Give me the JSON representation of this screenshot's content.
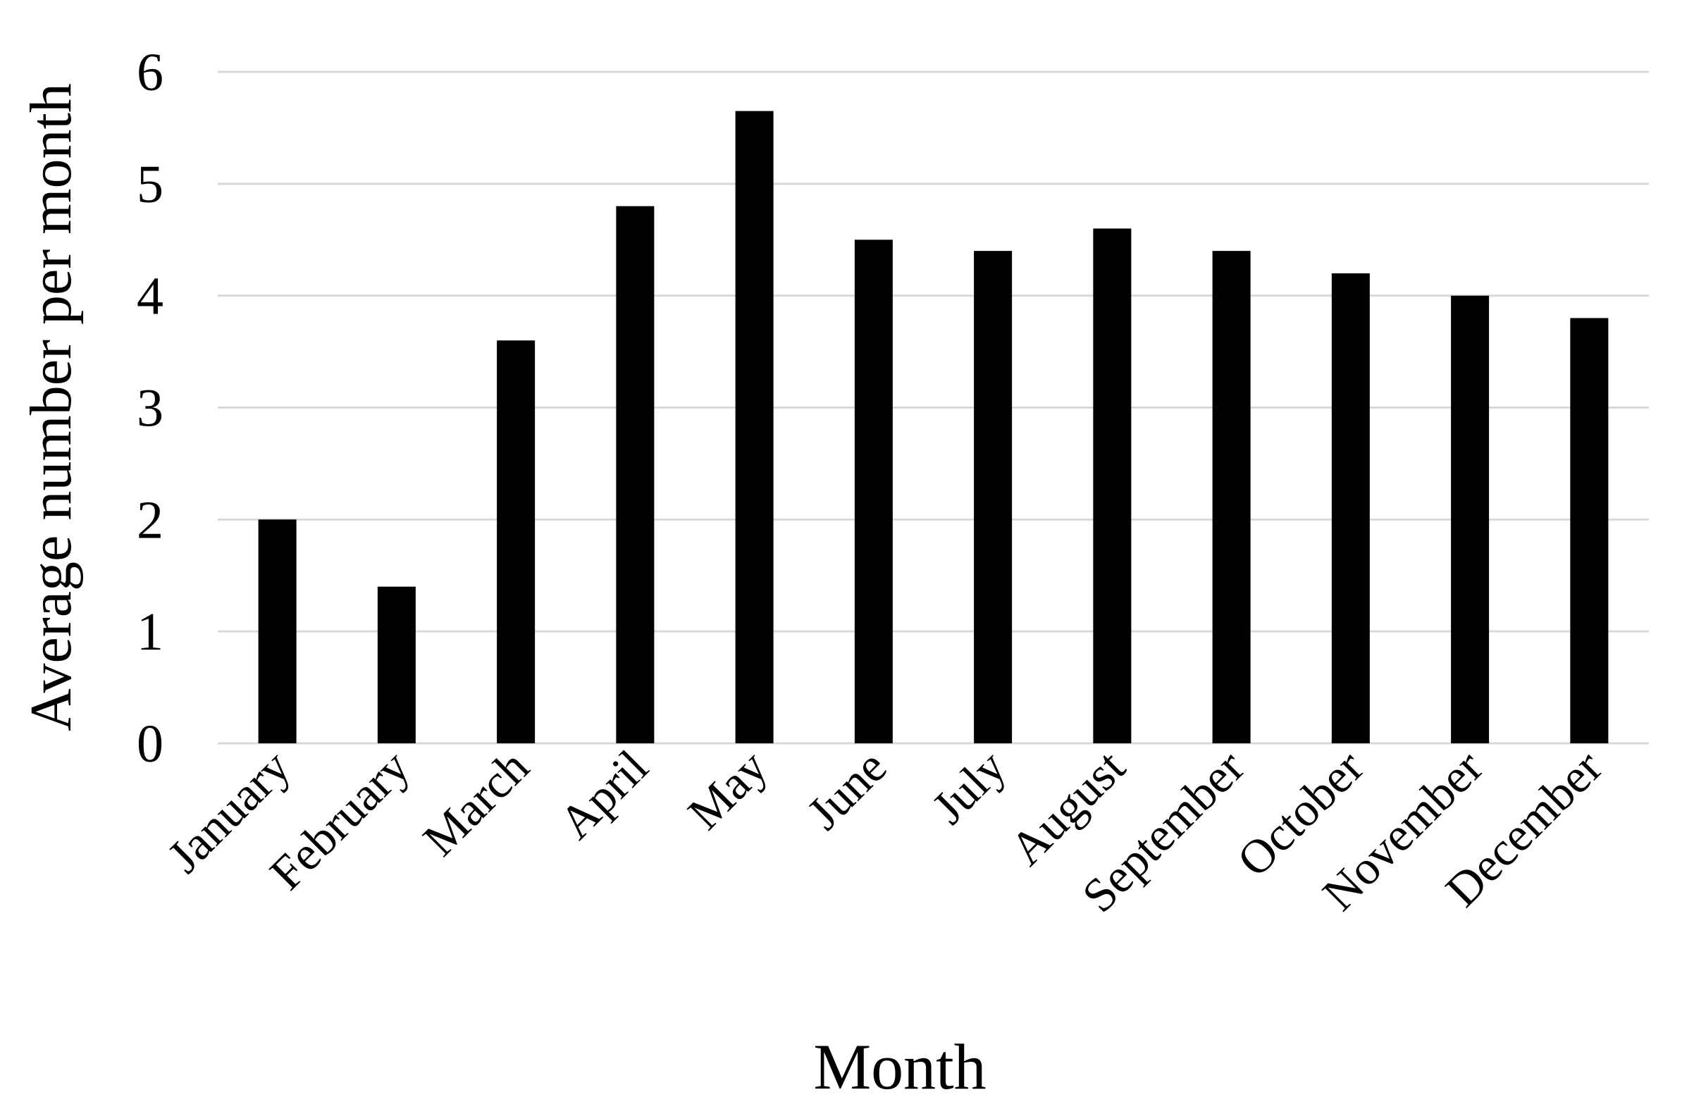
{
  "chart_data": {
    "type": "bar",
    "x_label": "Month",
    "y_label": "Average number per month",
    "categories": [
      "January",
      "February",
      "March",
      "April",
      "May",
      "June",
      "July",
      "August",
      "September",
      "October",
      "November",
      "December"
    ],
    "values": [
      2.0,
      1.4,
      3.6,
      4.8,
      5.65,
      4.5,
      4.4,
      4.6,
      4.4,
      4.2,
      4.0,
      3.8
    ],
    "color": "#000000",
    "ylim": [
      0,
      6
    ],
    "yticks": [
      0,
      1,
      2,
      3,
      4,
      5,
      6
    ],
    "grid": true
  }
}
